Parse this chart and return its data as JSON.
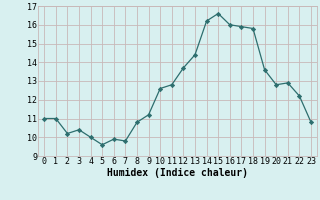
{
  "x": [
    0,
    1,
    2,
    3,
    4,
    5,
    6,
    7,
    8,
    9,
    10,
    11,
    12,
    13,
    14,
    15,
    16,
    17,
    18,
    19,
    20,
    21,
    22,
    23
  ],
  "y": [
    11.0,
    11.0,
    10.2,
    10.4,
    10.0,
    9.6,
    9.9,
    9.8,
    10.8,
    11.2,
    12.6,
    12.8,
    13.7,
    14.4,
    16.2,
    16.6,
    16.0,
    15.9,
    15.8,
    13.6,
    12.8,
    12.9,
    12.2,
    10.8
  ],
  "xlabel": "Humidex (Indice chaleur)",
  "xlim": [
    -0.5,
    23.5
  ],
  "ylim": [
    9,
    17
  ],
  "yticks": [
    9,
    10,
    11,
    12,
    13,
    14,
    15,
    16,
    17
  ],
  "xticks": [
    0,
    1,
    2,
    3,
    4,
    5,
    6,
    7,
    8,
    9,
    10,
    11,
    12,
    13,
    14,
    15,
    16,
    17,
    18,
    19,
    20,
    21,
    22,
    23
  ],
  "line_color": "#2d6e6e",
  "marker": "D",
  "marker_size": 2.2,
  "bg_color": "#d8f0f0",
  "grid_color": "#c8b8b8",
  "xlabel_fontsize": 7,
  "tick_fontsize": 6
}
